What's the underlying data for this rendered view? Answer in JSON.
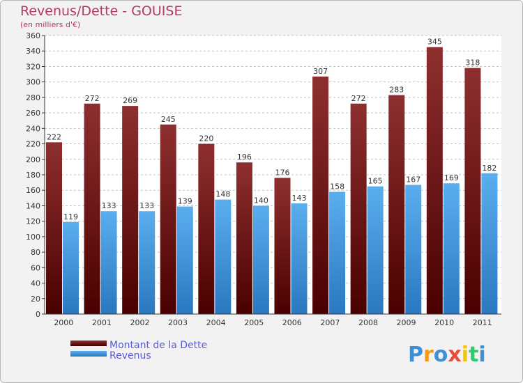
{
  "chart_data": {
    "type": "bar",
    "title": "Revenus/Dette - GOUISE",
    "subtitle": "(en milliers d'€)",
    "categories": [
      "2000",
      "2001",
      "2002",
      "2003",
      "2004",
      "2005",
      "2006",
      "2007",
      "2008",
      "2009",
      "2010",
      "2011"
    ],
    "series": [
      {
        "name": "Montant de la Dette",
        "color": "#7a1f1f",
        "values": [
          222,
          272,
          269,
          245,
          220,
          196,
          176,
          307,
          272,
          283,
          345,
          318
        ]
      },
      {
        "name": "Revenus",
        "color": "#3d8fd6",
        "values": [
          119,
          133,
          133,
          139,
          148,
          140,
          143,
          158,
          165,
          167,
          169,
          182
        ]
      }
    ],
    "ylim": [
      0,
      360
    ],
    "yticks": [
      0,
      20,
      40,
      60,
      80,
      100,
      120,
      140,
      160,
      180,
      200,
      220,
      240,
      260,
      280,
      300,
      320,
      340,
      360
    ],
    "grid": true,
    "legend": "bottom-left"
  },
  "logo": {
    "text": "Proxiti"
  }
}
